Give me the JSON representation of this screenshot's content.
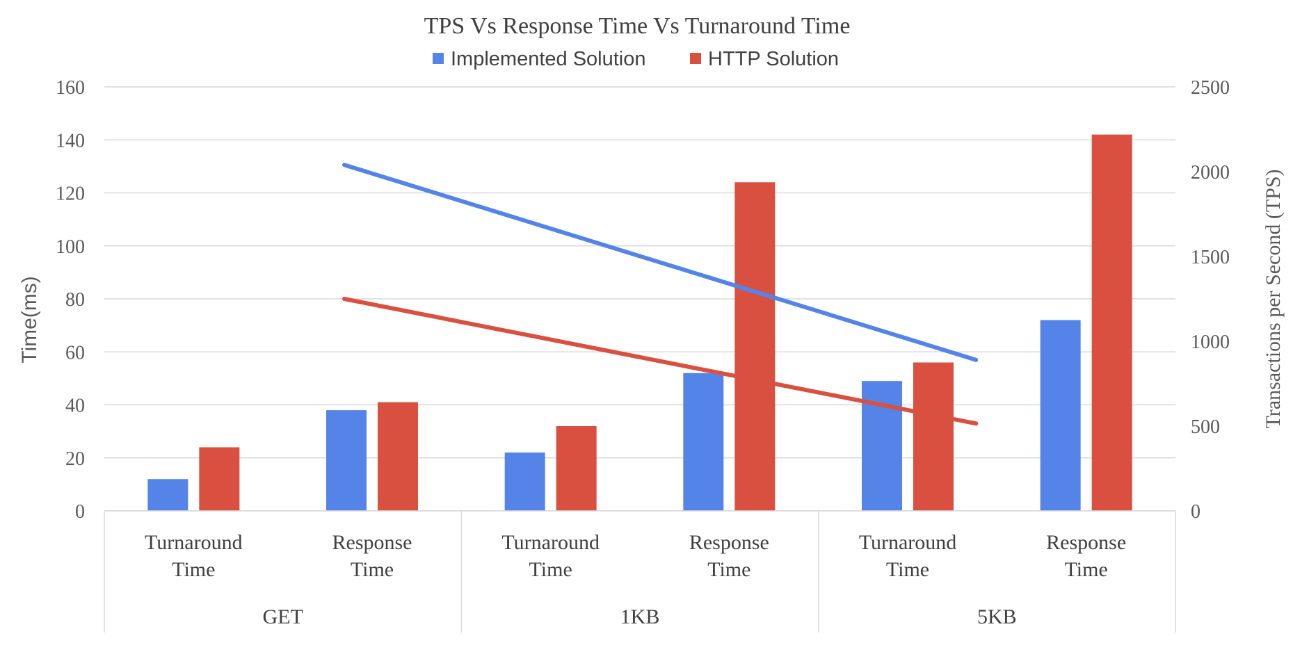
{
  "chart_data": {
    "type": "bar",
    "title": "TPS Vs Response Time Vs Turnaround Time",
    "categories": [
      [
        "Turnaround",
        "Time"
      ],
      [
        "Response",
        "Time"
      ],
      [
        "Turnaround",
        "Time"
      ],
      [
        "Response",
        "Time"
      ],
      [
        "Turnaround",
        "Time"
      ],
      [
        "Response",
        "Time"
      ]
    ],
    "groups": [
      "GET",
      "1KB",
      "5KB"
    ],
    "ylabel": "Time(ms)",
    "y2label": "Transactions per Second (TPS)",
    "ylim": [
      0,
      160
    ],
    "y2lim": [
      0,
      2500
    ],
    "yticks": [
      "0",
      "20",
      "40",
      "60",
      "80",
      "100",
      "120",
      "140",
      "160"
    ],
    "y2ticks": [
      "0",
      "500",
      "1000",
      "1500",
      "2000",
      "2500"
    ],
    "grid": true,
    "legend_position": "top",
    "series": [
      {
        "name": "Implemented Solution",
        "color": "#5584e8",
        "values": [
          12,
          38,
          22,
          52,
          49,
          72
        ]
      },
      {
        "name": "HTTP Solution",
        "color": "#d95040",
        "values": [
          24,
          41,
          32,
          124,
          56,
          142
        ]
      }
    ],
    "tps_lines": [
      {
        "series": "Implemented Solution",
        "color": "#5584e8",
        "values": [
          2040,
          890
        ]
      },
      {
        "series": "HTTP Solution",
        "color": "#d95040",
        "values": [
          1250,
          515
        ]
      }
    ]
  }
}
